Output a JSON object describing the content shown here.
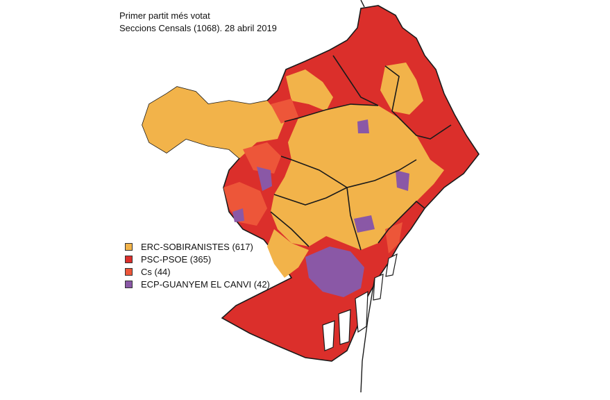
{
  "title": {
    "line1": "Primer partit més votat",
    "line2": "Seccions Censals (1068). 28 abril 2019"
  },
  "colors": {
    "erc": "#f2b34a",
    "psc": "#db2f2b",
    "cs": "#ed5639",
    "ecp": "#8a58a6",
    "border": "#1a1a1a"
  },
  "legend": [
    {
      "label": "ERC-SOBIRANISTES (617)",
      "color": "#f2b34a"
    },
    {
      "label": "PSC-PSOE (365)",
      "color": "#db2f2b"
    },
    {
      "label": "Cs (44)",
      "color": "#ed5639"
    },
    {
      "label": "ECP-GUANYEM EL CANVI (42)",
      "color": "#8a58a6"
    }
  ]
}
